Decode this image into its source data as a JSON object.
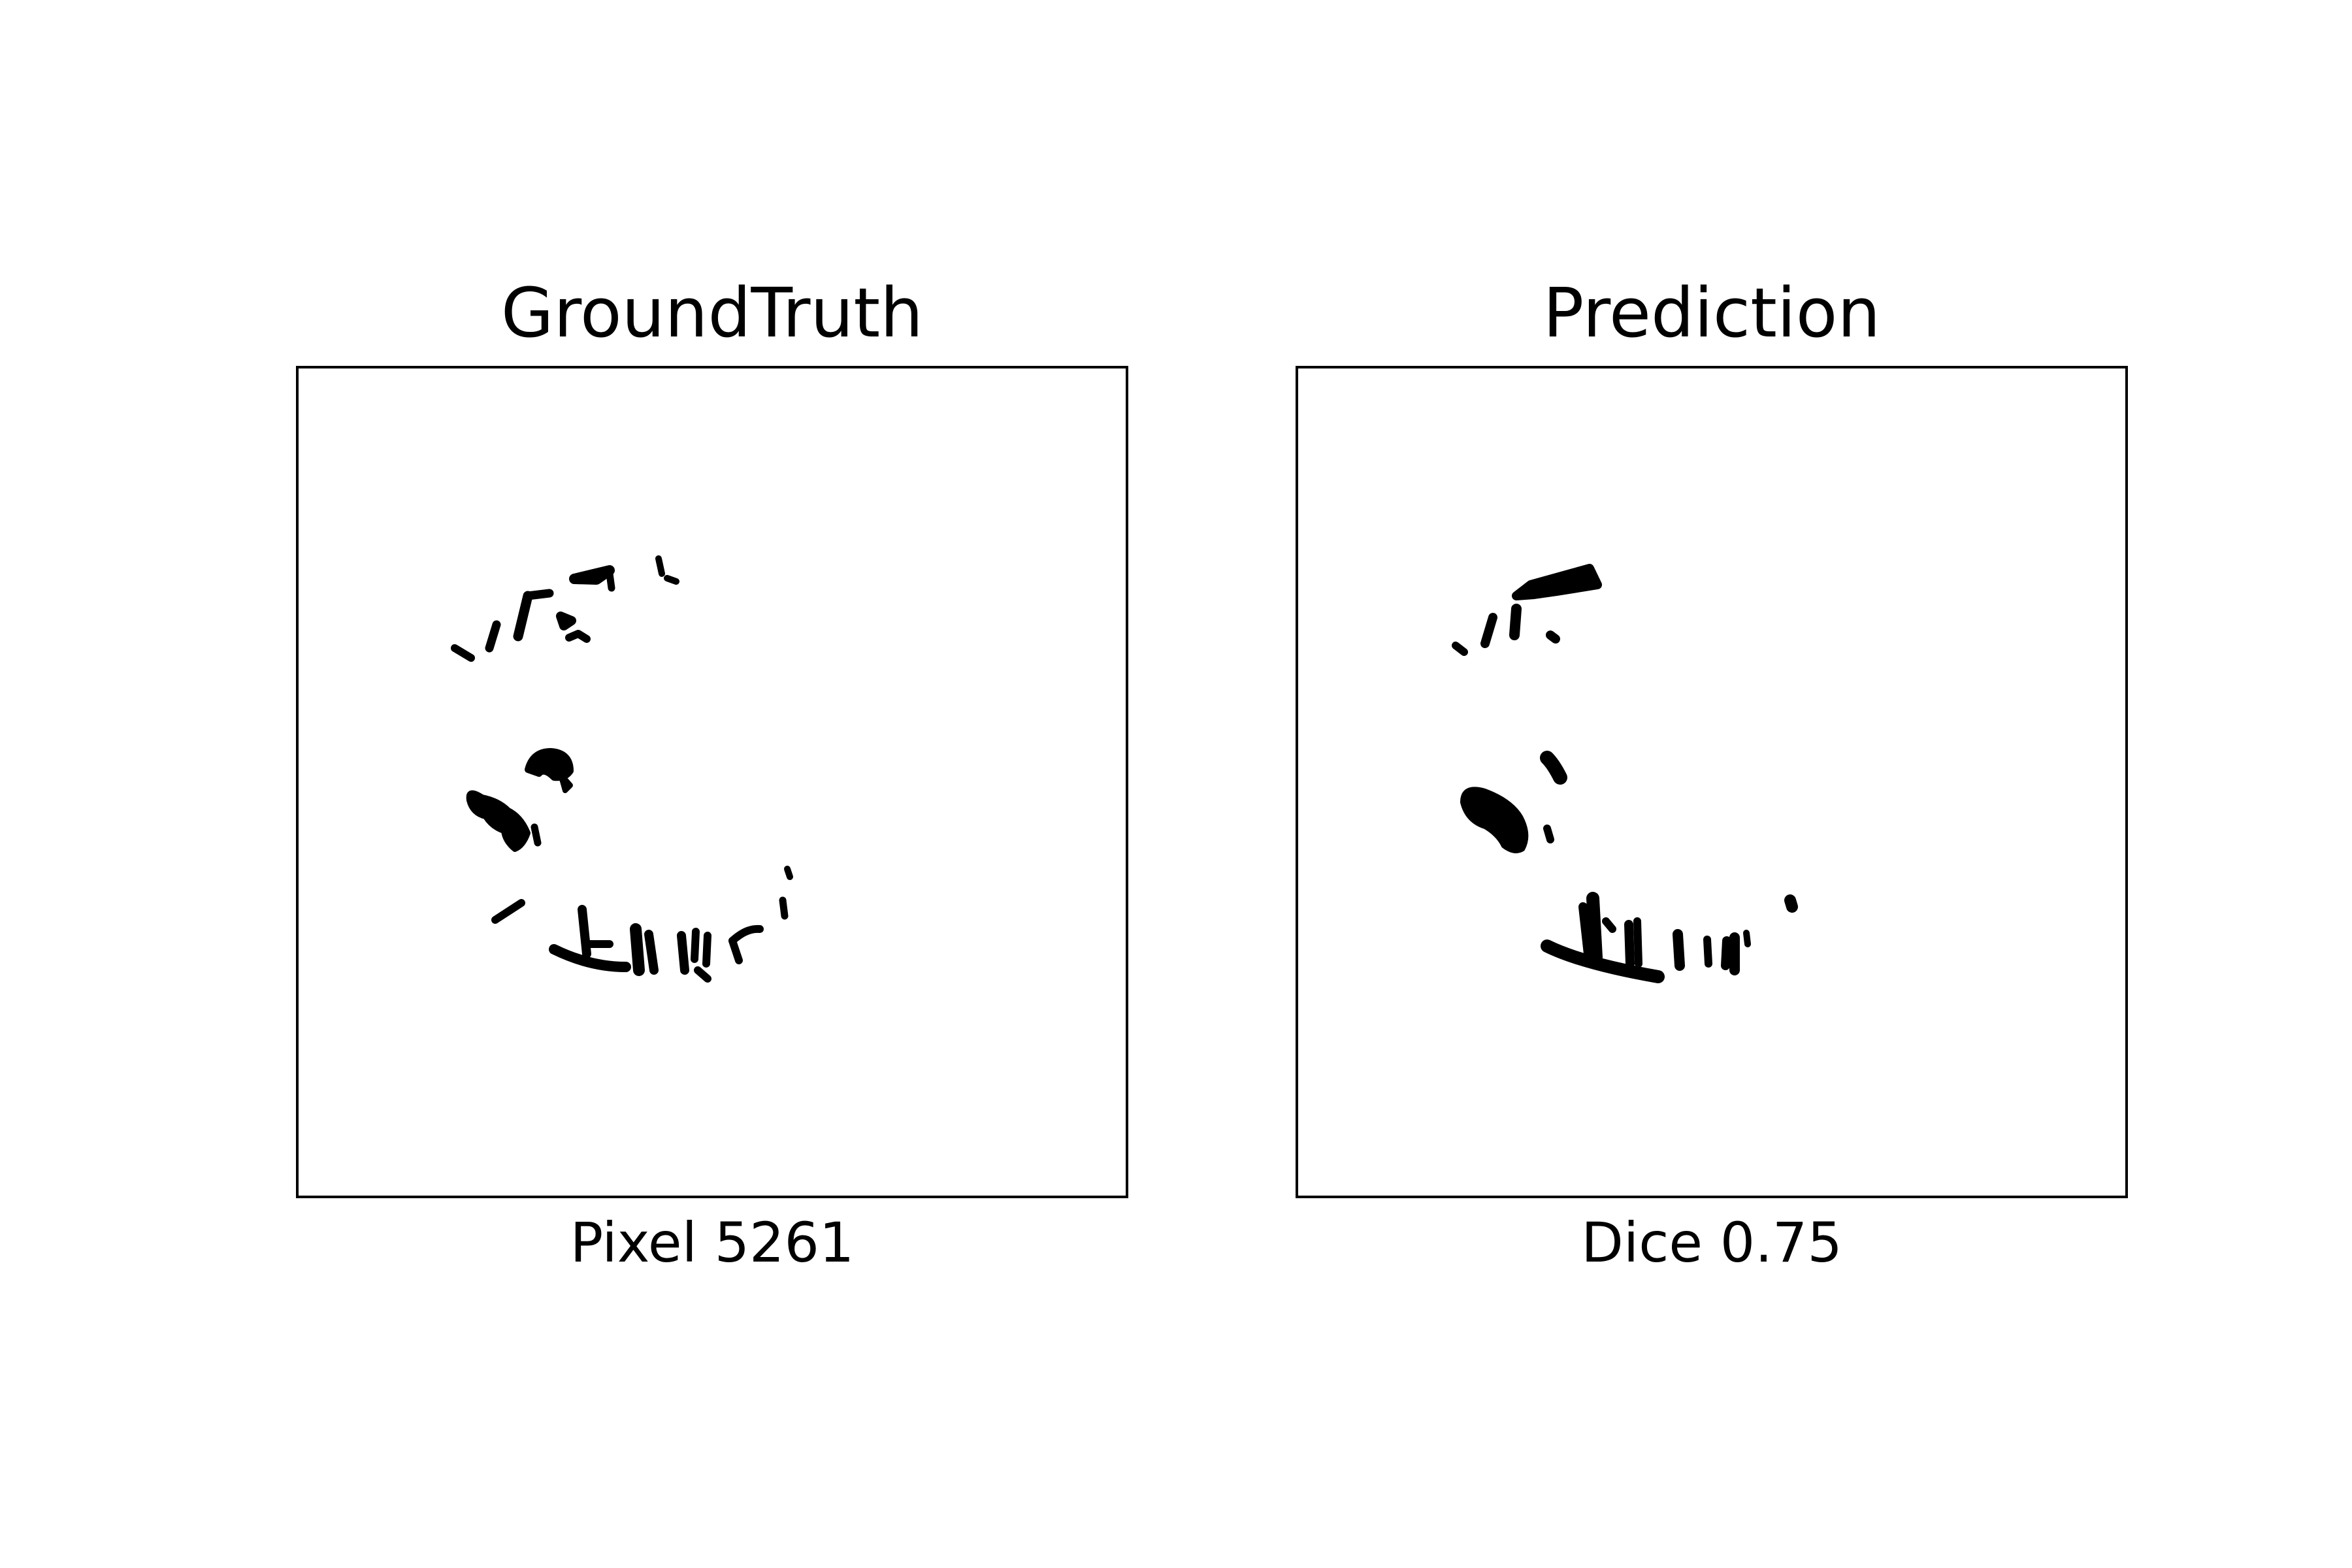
{
  "figure": {
    "panels": [
      {
        "title": "GroundTruth",
        "caption": "Pixel 5261"
      },
      {
        "title": "Prediction",
        "caption": "Dice 0.75"
      }
    ]
  },
  "colors": {
    "background": "#ffffff",
    "mask": "#000000",
    "frame": "#000000"
  }
}
